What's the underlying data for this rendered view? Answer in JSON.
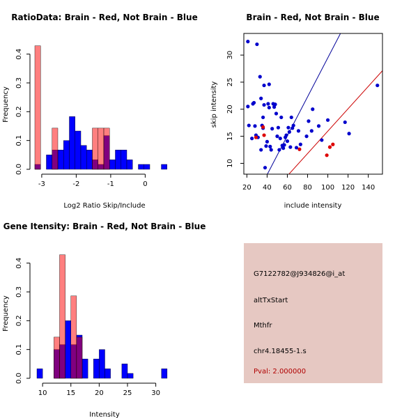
{
  "chart_data": [
    {
      "type": "histogram",
      "title": "RatioData: Brain - Red, Not Brain - Blue",
      "xlabel": "Log2 Ratio Skip/Include",
      "ylabel": "Frequency",
      "xlim": [
        -3.2,
        0.8
      ],
      "ylim": [
        0,
        0.45
      ],
      "xticks": [
        -3,
        -2,
        -1,
        0
      ],
      "yticks": [
        0.0,
        0.1,
        0.2,
        0.3,
        0.4
      ],
      "bin_width": 0.1667,
      "series": [
        {
          "name": "Not Brain",
          "color": "#0000ff",
          "opacity": 1,
          "bins": [
            [
              -3.2,
              0.017
            ],
            [
              -2.867,
              0.05
            ],
            [
              -2.7,
              0.067
            ],
            [
              -2.533,
              0.067
            ],
            [
              -2.367,
              0.1
            ],
            [
              -2.2,
              0.183
            ],
            [
              -2.033,
              0.133
            ],
            [
              -1.867,
              0.083
            ],
            [
              -1.7,
              0.067
            ],
            [
              -1.533,
              0.033
            ],
            [
              -1.367,
              0.017
            ],
            [
              -1.2,
              0.117
            ],
            [
              -1.033,
              0.033
            ],
            [
              -0.867,
              0.067
            ],
            [
              -0.7,
              0.067
            ],
            [
              -0.533,
              0.033
            ],
            [
              -0.2,
              0.017
            ],
            [
              -0.033,
              0.017
            ],
            [
              0.467,
              0.017
            ]
          ]
        },
        {
          "name": "Brain",
          "color": "#ff0000",
          "opacity": 0.5,
          "bins": [
            [
              -3.2,
              0.429
            ],
            [
              -2.7,
              0.143
            ],
            [
              -1.533,
              0.143
            ],
            [
              -1.367,
              0.143
            ],
            [
              -1.2,
              0.143
            ]
          ]
        }
      ]
    },
    {
      "type": "scatter",
      "title": "Brain - Red, Not Brain - Blue",
      "xlabel": "include intensity",
      "ylabel": "skip intensity",
      "xlim": [
        17,
        154
      ],
      "ylim": [
        8,
        34
      ],
      "xticks": [
        20,
        40,
        60,
        80,
        100,
        120,
        140
      ],
      "yticks": [
        10,
        15,
        20,
        25,
        30
      ],
      "series": [
        {
          "name": "Not Brain",
          "color": "#0000cc",
          "points": [
            [
              21,
              32.5
            ],
            [
              30,
              32
            ],
            [
              21,
              20.5
            ],
            [
              22,
              17
            ],
            [
              25,
              14.6
            ],
            [
              26,
              21
            ],
            [
              27,
              21.2
            ],
            [
              28,
              16.9
            ],
            [
              29,
              15.2
            ],
            [
              31,
              14.8
            ],
            [
              33,
              26
            ],
            [
              34,
              22
            ],
            [
              34,
              12.5
            ],
            [
              35,
              17
            ],
            [
              36,
              16.5
            ],
            [
              36,
              18.5
            ],
            [
              37,
              24.4
            ],
            [
              37,
              20.8
            ],
            [
              38,
              9.2
            ],
            [
              39,
              13.2
            ],
            [
              40,
              14
            ],
            [
              41,
              21
            ],
            [
              42,
              20.3
            ],
            [
              42,
              24.6
            ],
            [
              43,
              13.1
            ],
            [
              44,
              12.5
            ],
            [
              45,
              16.4
            ],
            [
              46,
              21
            ],
            [
              47,
              20.4
            ],
            [
              48,
              20.9
            ],
            [
              49,
              19.2
            ],
            [
              50,
              15
            ],
            [
              51,
              16.6
            ],
            [
              52,
              12.5
            ],
            [
              53,
              14.6
            ],
            [
              54,
              18.5
            ],
            [
              55,
              13.3
            ],
            [
              56,
              12.8
            ],
            [
              57,
              13.4
            ],
            [
              58,
              14.8
            ],
            [
              59,
              15.2
            ],
            [
              60,
              14.1
            ],
            [
              61,
              16.6
            ],
            [
              62,
              15.8
            ],
            [
              63,
              13
            ],
            [
              64,
              18.5
            ],
            [
              65,
              16.5
            ],
            [
              66,
              17
            ],
            [
              69,
              12.9
            ],
            [
              71,
              16
            ],
            [
              73,
              13.5
            ],
            [
              79,
              15
            ],
            [
              81,
              17.8
            ],
            [
              84,
              16
            ],
            [
              85,
              20
            ],
            [
              91,
              16.9
            ],
            [
              94,
              14.3
            ],
            [
              100,
              18
            ],
            [
              117,
              17.6
            ],
            [
              121,
              15.5
            ],
            [
              149,
              24.4
            ]
          ]
        },
        {
          "name": "Brain",
          "color": "#dd0000",
          "points": [
            [
              29,
              14.8
            ],
            [
              36,
              16.7
            ],
            [
              37,
              15.2
            ],
            [
              72,
              12.6
            ],
            [
              99,
              11.5
            ],
            [
              102,
              13
            ],
            [
              105,
              13.5
            ]
          ]
        }
      ],
      "lines": [
        {
          "name": "brain-fit",
          "color": "#cc0000",
          "intercept": -4.72,
          "slope": 0.2067
        },
        {
          "name": "not-brain-fit",
          "color": "#000099",
          "intercept": -6.5,
          "slope": 0.36
        }
      ]
    },
    {
      "type": "histogram",
      "title": "Gene Itensity: Brain - Red, Not Brain - Blue",
      "xlabel": "Intensity",
      "ylabel": "Frequency",
      "xlim": [
        9,
        33
      ],
      "ylim": [
        0,
        0.45
      ],
      "xticks": [
        10,
        15,
        20,
        25,
        30
      ],
      "yticks": [
        0.0,
        0.1,
        0.2,
        0.3,
        0.4
      ],
      "bin_width": 1,
      "series": [
        {
          "name": "Not Brain",
          "color": "#0000ff",
          "opacity": 1,
          "bins": [
            [
              9,
              0.033
            ],
            [
              12,
              0.1
            ],
            [
              13,
              0.117
            ],
            [
              14,
              0.2
            ],
            [
              15,
              0.117
            ],
            [
              16,
              0.15
            ],
            [
              17,
              0.067
            ],
            [
              19,
              0.067
            ],
            [
              20,
              0.1
            ],
            [
              21,
              0.033
            ],
            [
              24,
              0.05
            ],
            [
              25,
              0.017
            ],
            [
              31,
              0.033
            ]
          ]
        },
        {
          "name": "Brain",
          "color": "#ff0000",
          "opacity": 0.5,
          "bins": [
            [
              12,
              0.143
            ],
            [
              13,
              0.429
            ],
            [
              15,
              0.286
            ],
            [
              16,
              0.143
            ]
          ]
        }
      ]
    }
  ],
  "info": {
    "probe": "G7122782@J934826@i_at",
    "event": "altTxStart",
    "gene": "Mthfr",
    "location": "chr4.18455-1.s",
    "pval": "Pval: 2.000000"
  },
  "colors": {
    "info_background": "#e6c8c2",
    "overlap": "#7f0080",
    "pval_text": "#b00000"
  }
}
